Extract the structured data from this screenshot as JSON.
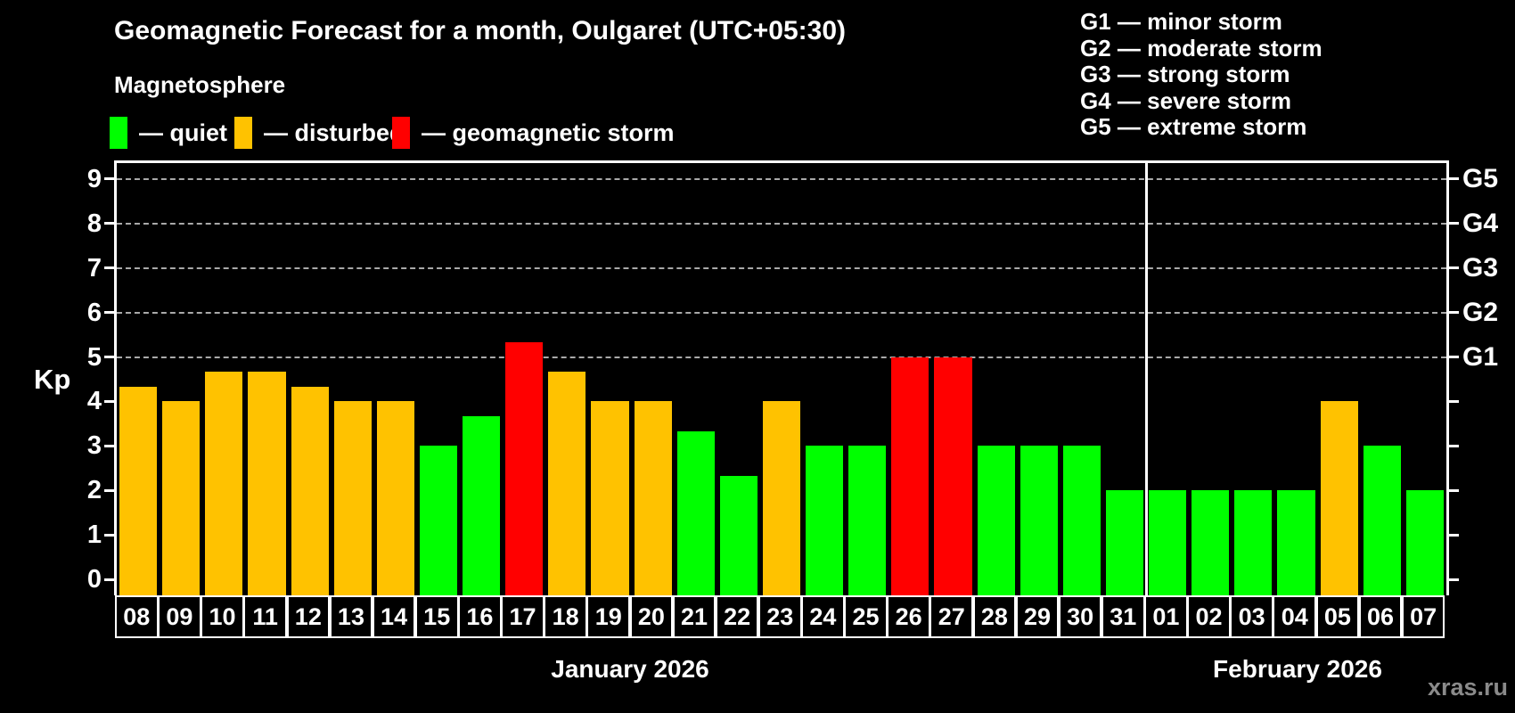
{
  "header": {
    "title": "Geomagnetic Forecast for a month, Oulgaret (UTC+05:30)",
    "subtitle": "Magnetosphere",
    "legend": [
      {
        "status": "quiet",
        "label": "— quiet",
        "color": "#00ff00"
      },
      {
        "status": "disturbed",
        "label": "— disturbed",
        "color": "#ffc200"
      },
      {
        "status": "storm",
        "label": "— geomagnetic storm",
        "color": "#ff0000"
      }
    ],
    "g_scale_legend": [
      "G1 — minor storm",
      "G2 — moderate storm",
      "G3 — strong storm",
      "G4 — severe storm",
      "G5 — extreme storm"
    ]
  },
  "chart_data": {
    "type": "bar",
    "ylabel": "Kp",
    "ylim": [
      -0.36,
      9.36
    ],
    "y_ticks": [
      0,
      1,
      2,
      3,
      4,
      5,
      6,
      7,
      8,
      9
    ],
    "gridlines_kp": [
      5,
      6,
      7,
      8,
      9
    ],
    "right_axis_labels": [
      {
        "kp": 5,
        "label": "G1"
      },
      {
        "kp": 6,
        "label": "G2"
      },
      {
        "kp": 7,
        "label": "G3"
      },
      {
        "kp": 8,
        "label": "G4"
      },
      {
        "kp": 9,
        "label": "G5"
      }
    ],
    "categories": [
      "08",
      "09",
      "10",
      "11",
      "12",
      "13",
      "14",
      "15",
      "16",
      "17",
      "18",
      "19",
      "20",
      "21",
      "22",
      "23",
      "24",
      "25",
      "26",
      "27",
      "28",
      "29",
      "30",
      "31",
      "01",
      "02",
      "03",
      "04",
      "05",
      "06",
      "07"
    ],
    "values": [
      4.33,
      4.0,
      4.67,
      4.67,
      4.33,
      4.0,
      4.0,
      3.0,
      3.67,
      5.33,
      4.67,
      4.0,
      4.0,
      3.33,
      2.33,
      4.0,
      3.0,
      3.0,
      5.0,
      5.0,
      3.0,
      3.0,
      3.0,
      2.0,
      2.0,
      2.0,
      2.0,
      2.0,
      4.0,
      3.0,
      2.0
    ],
    "statuses": [
      "disturbed",
      "disturbed",
      "disturbed",
      "disturbed",
      "disturbed",
      "disturbed",
      "disturbed",
      "quiet",
      "quiet",
      "storm",
      "disturbed",
      "disturbed",
      "disturbed",
      "quiet",
      "quiet",
      "disturbed",
      "quiet",
      "quiet",
      "storm",
      "storm",
      "quiet",
      "quiet",
      "quiet",
      "quiet",
      "quiet",
      "quiet",
      "quiet",
      "quiet",
      "disturbed",
      "quiet",
      "quiet"
    ],
    "colors": {
      "quiet": "#00ff00",
      "disturbed": "#ffc200",
      "storm": "#ff0000"
    },
    "months": [
      {
        "label": "January 2026",
        "days": 24
      },
      {
        "label": "February 2026",
        "days": 7
      }
    ],
    "legend_position": "top",
    "grid": "dashed horizontal at Kp 5-9 only"
  },
  "watermark": "xras.ru"
}
